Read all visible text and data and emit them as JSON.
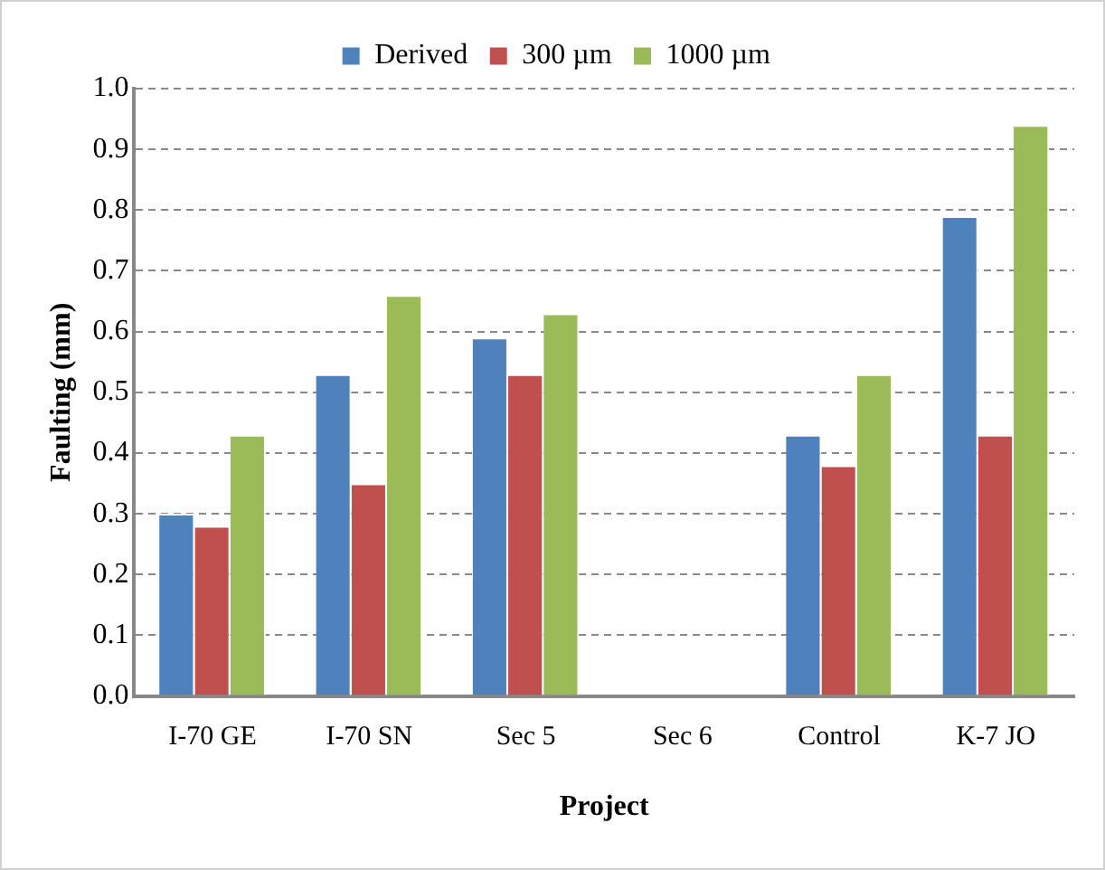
{
  "chart_data": {
    "type": "bar",
    "xlabel": "Project",
    "ylabel": "Faulting (mm)",
    "categories": [
      "I-70 GE",
      "I-70 SN",
      "Sec 5",
      "Sec 6",
      "Control",
      "K-7 JO"
    ],
    "series": [
      {
        "name": "Derived",
        "color": "#4f81bd",
        "values": [
          0.3,
          0.53,
          0.59,
          null,
          0.43,
          0.79
        ]
      },
      {
        "name": "300 µm",
        "color": "#c0504d",
        "values": [
          0.28,
          0.35,
          0.53,
          null,
          0.38,
          0.43
        ]
      },
      {
        "name": "1000 µm",
        "color": "#9bbb59",
        "values": [
          0.43,
          0.66,
          0.63,
          null,
          0.53,
          0.94
        ]
      }
    ],
    "ylim": [
      0,
      1
    ],
    "yticks": [
      {
        "value": 0,
        "label": "0.0"
      },
      {
        "value": 0.1,
        "label": "0.1"
      },
      {
        "value": 0.2,
        "label": "0.2"
      },
      {
        "value": 0.3,
        "label": "0.3"
      },
      {
        "value": 0.4,
        "label": "0.4"
      },
      {
        "value": 0.5,
        "label": "0.5"
      },
      {
        "value": 0.6,
        "label": "0.6"
      },
      {
        "value": 0.7,
        "label": "0.7"
      },
      {
        "value": 0.8,
        "label": "0.8"
      },
      {
        "value": 0.9,
        "label": "0.9"
      },
      {
        "value": 1,
        "label": "1.0"
      }
    ],
    "grid": "y",
    "legend": "top"
  }
}
